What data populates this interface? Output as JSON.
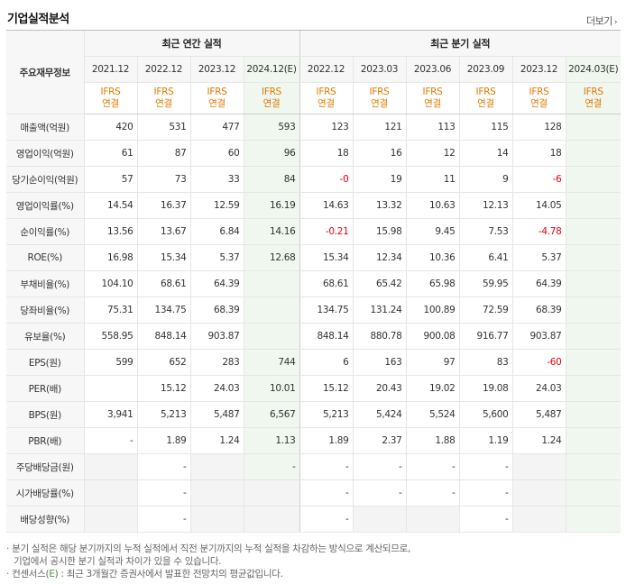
{
  "page": {
    "title": "기업실적분석",
    "more_label": "더보기"
  },
  "headers": {
    "row_label": "주요재무정보",
    "annual_group": "최근 연간 실적",
    "quarter_group": "최근 분기 실적",
    "periods": [
      "2021.12",
      "2022.12",
      "2023.12",
      "2024.12(E)",
      "2022.12",
      "2023.03",
      "2023.06",
      "2023.09",
      "2023.12",
      "2024.03(E)"
    ],
    "ifrs_top": "IFRS",
    "ifrs_bottom": "연결"
  },
  "rows": [
    {
      "label": "매출액(억원)",
      "values": [
        "420",
        "531",
        "477",
        "593",
        "123",
        "121",
        "113",
        "115",
        "128",
        ""
      ]
    },
    {
      "label": "영업이익(억원)",
      "values": [
        "61",
        "87",
        "60",
        "96",
        "18",
        "16",
        "12",
        "14",
        "18",
        ""
      ]
    },
    {
      "label": "당기순이익(억원)",
      "values": [
        "57",
        "73",
        "33",
        "84",
        "-0",
        "19",
        "11",
        "9",
        "-6",
        ""
      ]
    },
    {
      "label": "영업이익률(%)",
      "values": [
        "14.54",
        "16.37",
        "12.59",
        "16.19",
        "14.63",
        "13.32",
        "10.63",
        "12.13",
        "14.05",
        ""
      ]
    },
    {
      "label": "순이익률(%)",
      "values": [
        "13.56",
        "13.67",
        "6.84",
        "14.16",
        "-0.21",
        "15.98",
        "9.45",
        "7.53",
        "-4.78",
        ""
      ]
    },
    {
      "label": "ROE(%)",
      "values": [
        "16.98",
        "15.34",
        "5.37",
        "12.68",
        "15.34",
        "12.34",
        "10.36",
        "6.41",
        "5.37",
        ""
      ]
    },
    {
      "label": "부채비율(%)",
      "values": [
        "104.10",
        "68.61",
        "64.39",
        "",
        "68.61",
        "65.42",
        "65.98",
        "59.95",
        "64.39",
        ""
      ]
    },
    {
      "label": "당좌비율(%)",
      "values": [
        "75.31",
        "134.75",
        "68.39",
        "",
        "134.75",
        "131.24",
        "100.89",
        "72.59",
        "68.39",
        ""
      ]
    },
    {
      "label": "유보율(%)",
      "values": [
        "558.95",
        "848.14",
        "903.87",
        "",
        "848.14",
        "880.78",
        "900.08",
        "916.77",
        "903.87",
        ""
      ]
    },
    {
      "label": "EPS(원)",
      "values": [
        "599",
        "652",
        "283",
        "744",
        "6",
        "163",
        "97",
        "83",
        "-60",
        ""
      ]
    },
    {
      "label": "PER(배)",
      "values": [
        "",
        "15.12",
        "24.03",
        "10.01",
        "15.12",
        "20.43",
        "19.02",
        "19.08",
        "24.03",
        ""
      ]
    },
    {
      "label": "BPS(원)",
      "values": [
        "3,941",
        "5,213",
        "5,487",
        "6,567",
        "5,213",
        "5,424",
        "5,524",
        "5,600",
        "5,487",
        ""
      ]
    },
    {
      "label": "PBR(배)",
      "values": [
        "-",
        "1.89",
        "1.24",
        "1.13",
        "1.89",
        "2.37",
        "1.88",
        "1.19",
        "1.24",
        ""
      ]
    },
    {
      "label": "주당배당금(원)",
      "values": [
        "",
        "-",
        "",
        "-",
        "-",
        "-",
        "-",
        "-",
        "",
        ""
      ]
    },
    {
      "label": "시가배당률(%)",
      "values": [
        "",
        "-",
        "",
        "",
        "-",
        "-",
        "-",
        "-",
        "",
        ""
      ]
    },
    {
      "label": "배당성향(%)",
      "values": [
        "",
        "-",
        "",
        "",
        "-",
        "",
        "",
        "-",
        "",
        ""
      ]
    }
  ],
  "notes": {
    "line1": "분기 실적은 해당 분기까지의 누적 실적에서 직전 분기까지의 누적 실적을 차감하는 방식으로 계산되므로,",
    "line2": "기업에서 공시한 분기 실적과 차이가 있을 수 있습니다.",
    "line3a": "컨센서스(",
    "line3e": "E",
    "line3b": ") : 최근 3개월간 증권사에서 발표한 전망치의 평균값입니다."
  }
}
